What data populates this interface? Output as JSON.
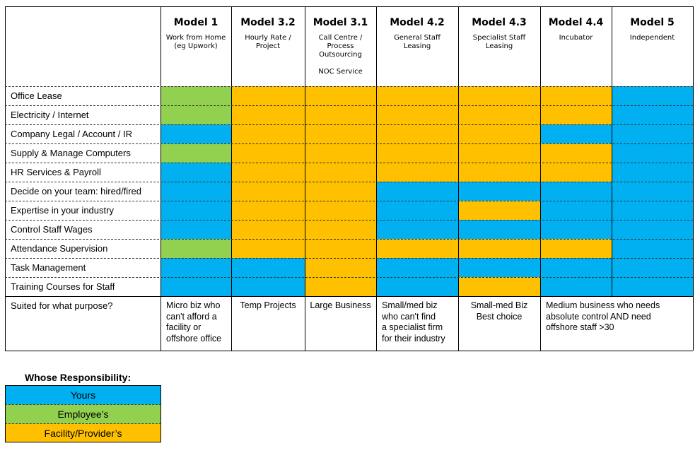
{
  "colors": {
    "yours": "#00b0f0",
    "employee": "#92d050",
    "facility": "#ffc000"
  },
  "models": [
    {
      "title": "Model 1",
      "subtitle": "Work from Home\n(eg Upwork)"
    },
    {
      "title": "Model 3.2",
      "subtitle": "Hourly Rate /\nProject"
    },
    {
      "title": "Model 3.1",
      "subtitle": "Call Centre /\nProcess\nOutsourcing\n\nNOC Service"
    },
    {
      "title": "Model 4.2",
      "subtitle": "General Staff\nLeasing"
    },
    {
      "title": "Model 4.3",
      "subtitle": "Specialist Staff\nLeasing"
    },
    {
      "title": "Model 4.4",
      "subtitle": "Incubator"
    },
    {
      "title": "Model 5",
      "subtitle": "Independent"
    }
  ],
  "rows": [
    {
      "label": "Office Lease",
      "cells": [
        "employee",
        "facility",
        "facility",
        "facility",
        "facility",
        "facility",
        "yours"
      ]
    },
    {
      "label": "Electricity / Internet",
      "cells": [
        "employee",
        "facility",
        "facility",
        "facility",
        "facility",
        "facility",
        "yours"
      ]
    },
    {
      "label": "Company Legal / Account / IR",
      "cells": [
        "yours",
        "facility",
        "facility",
        "facility",
        "facility",
        "yours",
        "yours"
      ]
    },
    {
      "label": "Supply & Manage Computers",
      "cells": [
        "employee",
        "facility",
        "facility",
        "facility",
        "facility",
        "facility",
        "yours"
      ]
    },
    {
      "label": "HR Services & Payroll",
      "cells": [
        "yours",
        "facility",
        "facility",
        "facility",
        "facility",
        "facility",
        "yours"
      ]
    },
    {
      "label": "Decide on your team: hired/fired",
      "cells": [
        "yours",
        "facility",
        "facility",
        "yours",
        "yours",
        "yours",
        "yours"
      ]
    },
    {
      "label": "Expertise in your industry",
      "cells": [
        "yours",
        "facility",
        "facility",
        "yours",
        "facility",
        "yours",
        "yours"
      ]
    },
    {
      "label": "Control Staff Wages",
      "cells": [
        "yours",
        "facility",
        "facility",
        "yours",
        "yours",
        "yours",
        "yours"
      ]
    },
    {
      "label": "Attendance Supervision",
      "cells": [
        "employee",
        "facility",
        "facility",
        "facility",
        "facility",
        "facility",
        "yours"
      ]
    },
    {
      "label": "Task Management",
      "cells": [
        "yours",
        "yours",
        "facility",
        "yours",
        "yours",
        "yours",
        "yours"
      ]
    },
    {
      "label": "Training Courses for Staff",
      "cells": [
        "yours",
        "yours",
        "facility",
        "yours",
        "facility",
        "yours",
        "yours"
      ]
    }
  ],
  "purpose": {
    "label": "Suited for what purpose?",
    "values": [
      {
        "text": "Micro biz who\ncan't afford a\nfacility or\noffshore office",
        "span": 1,
        "align": "left"
      },
      {
        "text": "Temp Projects",
        "span": 1,
        "align": "center"
      },
      {
        "text": "Large Business",
        "span": 1,
        "align": "center"
      },
      {
        "text": "Small/med biz\nwho can't find\na specialist firm\nfor their industry",
        "span": 1,
        "align": "left"
      },
      {
        "text": "Small-med Biz\nBest choice",
        "span": 1,
        "align": "center"
      },
      {
        "text": "Medium business who needs\nabsolute control AND need\noffshore staff >30",
        "span": 2,
        "align": "left"
      }
    ]
  },
  "legend": {
    "title": "Whose Responsibility:",
    "items": [
      {
        "key": "yours",
        "label": "Yours"
      },
      {
        "key": "employee",
        "label": "Employee’s"
      },
      {
        "key": "facility",
        "label": "Facility/Provider’s"
      }
    ]
  }
}
